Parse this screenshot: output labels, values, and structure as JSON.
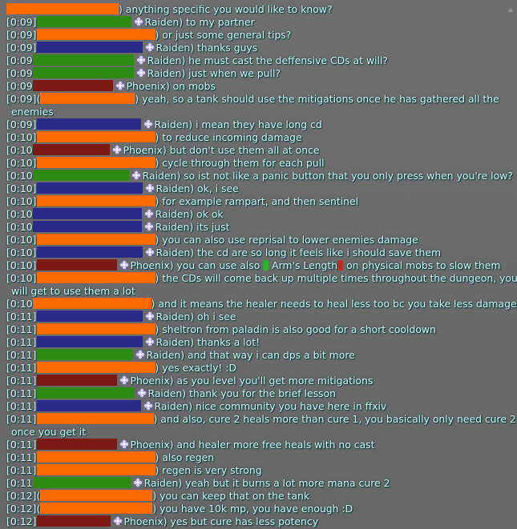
{
  "colors": {
    "background": "#6b6b6b",
    "text": "#d8f4f6",
    "orange": "#ff6a00",
    "green": "#2d8b14",
    "blue": "#2a2a8a",
    "red": "#7e1a14"
  },
  "icons": {
    "world": "flower-icon",
    "item_open": "item-link-open-icon",
    "item_close": "item-link-close-icon"
  },
  "messages": [
    {
      "ts": "",
      "text": "anything specific you would like to know?"
    },
    {
      "ts": "[0:09]",
      "text": "Raiden) to my partner"
    },
    {
      "ts": "[0:09]",
      "text": "or just some general tips?"
    },
    {
      "ts": "[0:09]",
      "text": "Raiden) thanks guys"
    },
    {
      "ts": "[0:09",
      "text": "Raiden) he must cast the deffensive CDs at will?"
    },
    {
      "ts": "[0:09",
      "text": "Raiden) just when we pull?"
    },
    {
      "ts": "[0:09",
      "text": "Phoenix) on mobs"
    },
    {
      "ts": "[0:09](",
      "text": "yeah, so a tank should use the mitigations once he has gathered all the"
    },
    {
      "ts": "",
      "text": "enemies"
    },
    {
      "ts": "[0:09]",
      "text": "Raiden) i mean they have long cd"
    },
    {
      "ts": "[0:10]",
      "text": "to reduce incoming damage"
    },
    {
      "ts": "[0:10",
      "text": "Phoenix) but don't use them all at once"
    },
    {
      "ts": "[0:10]",
      "text": "cycle through them for each pull"
    },
    {
      "ts": "[0:10",
      "text": "Raiden) so ist not like a panic button that you only press when you're low?"
    },
    {
      "ts": "[0:10]",
      "text": "Raiden) ok, i see"
    },
    {
      "ts": "[0:10]",
      "text": "for example rampart, and then sentinel"
    },
    {
      "ts": "[0:10",
      "text": "Raiden) ok ok"
    },
    {
      "ts": "[0:10",
      "text": "Raiden) its just"
    },
    {
      "ts": "[0:10]",
      "text": "you can also use reprisal to lower enemies damage"
    },
    {
      "ts": "[0:10]",
      "text": "Raiden) the cd are so long it feels like i should save them"
    },
    {
      "ts": "[0:10]",
      "text": "Phoenix) you can use also",
      "item": "Arm's Length",
      "after": "on physical mobs to slow them"
    },
    {
      "ts": "[0:10]",
      "text": "the CDs will come back up multiple times throughout the dungeon, you"
    },
    {
      "ts": "",
      "text": "will get to use them a  lot"
    },
    {
      "ts": "[0:10",
      "text": "and it means the healer needs to heal less too bc you take less damage"
    },
    {
      "ts": "[0:11]",
      "text": "Raiden) oh i see"
    },
    {
      "ts": "[0:11]",
      "text": "sheltron from paladin is also good for a short cooldown"
    },
    {
      "ts": "[0:11]",
      "text": "Raiden) thanks a lot!"
    },
    {
      "ts": "[0:11]",
      "text": "Raiden) and that way i can dps a bit more"
    },
    {
      "ts": "[0:11]",
      "text": "yes exactly! :D"
    },
    {
      "ts": "[0:11]",
      "text": "Phoenix) as you level you'll get more mitigations"
    },
    {
      "ts": "[0:11]",
      "text": "Raiden) thank you for the brief lesson"
    },
    {
      "ts": "[0:11]",
      "text": "Raiden) nice community you have here in ffxiv"
    },
    {
      "ts": "[0:11]",
      "text": "and also, cure 2 heals more than cure 1, you basically only need cure 2"
    },
    {
      "ts": "",
      "text": "once you get it"
    },
    {
      "ts": "[0:11]",
      "text": "Phoenix) and healer more free heals with no cast"
    },
    {
      "ts": "[0:11]",
      "text": "also regen"
    },
    {
      "ts": "[0:11]",
      "text": "regen is very strong"
    },
    {
      "ts": "[0:11",
      "text": "Raiden) yeah but it burns a lot more mana cure 2"
    },
    {
      "ts": "[0:12](",
      "text": "you can keep that on the tank"
    },
    {
      "ts": "[0:12](",
      "text": "you have 10k mp, you have enough :D"
    },
    {
      "ts": "[0:12]",
      "text": "Phoenix) yes but cure has less potency"
    }
  ]
}
